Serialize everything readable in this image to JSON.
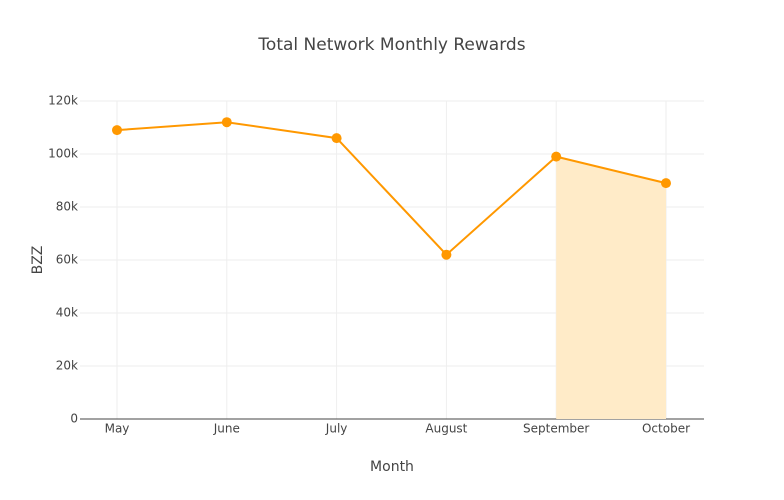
{
  "chart_data": {
    "type": "line",
    "title": "Total Network Monthly Rewards",
    "x_label": "Month",
    "y_label": "BZZ",
    "categories": [
      "May",
      "June",
      "July",
      "August",
      "September",
      "October"
    ],
    "series": [
      {
        "color": "#ff9800",
        "values": [
          109000,
          112000,
          106000,
          62000,
          99000,
          89000
        ]
      },
      {
        "color": "#ffebc8",
        "fill": "tozeroy",
        "values": [
          null,
          null,
          null,
          null,
          99000,
          89000
        ]
      }
    ],
    "ylim": [
      0,
      120000
    ],
    "yticks": [
      0,
      {
        "value": 20000,
        "label": "20k"
      },
      {
        "value": 40000,
        "label": "40k"
      },
      {
        "value": 60000,
        "label": "60k"
      },
      {
        "value": 80000,
        "label": "80k"
      },
      {
        "value": 100000,
        "label": "100k"
      },
      {
        "value": 120000,
        "label": "120k"
      }
    ],
    "grid": true
  }
}
